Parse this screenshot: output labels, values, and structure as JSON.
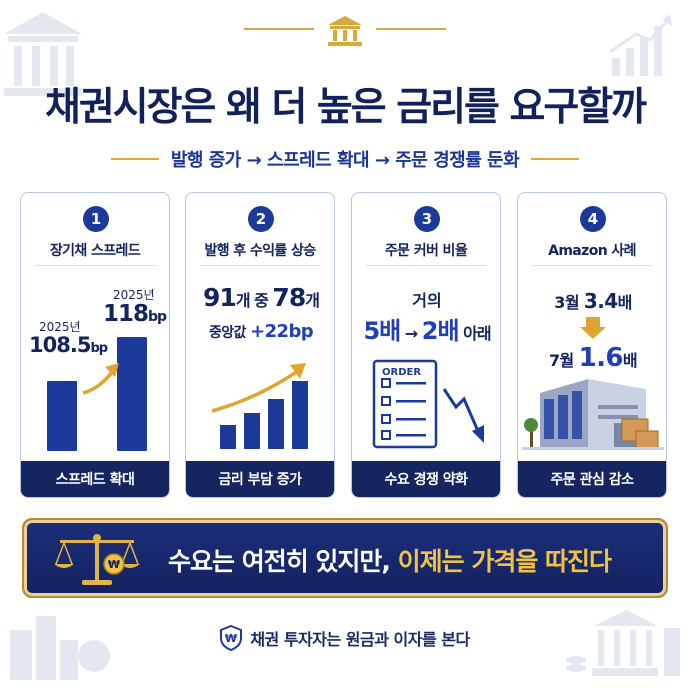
{
  "title": "채권시장은 왜 더 높은 금리를 요구할까",
  "subtitle": "발행 증가 → 스프레드 확대 → 주문 경쟁률 둔화",
  "cards": [
    {
      "number": "1",
      "title": "장기채 스프레드",
      "year_a": "2025년",
      "value_a": "108.5",
      "unit_a": "bp",
      "year_b": "2025년",
      "value_b": "118",
      "unit_b": "bp",
      "footer": "스프레드 확대",
      "bars": [
        108.5,
        118
      ]
    },
    {
      "number": "2",
      "title": "발행 후 수익률 상승",
      "count_a": "91",
      "count_a_unit": "개 중 ",
      "count_b": "78",
      "count_b_unit": "개",
      "median_label": "중앙값 ",
      "median_value": "+22bp",
      "footer": "금리 부담 증가"
    },
    {
      "number": "3",
      "title": "주문 커버 비율",
      "prefix": "거의",
      "from": "5배",
      "arrow": " → ",
      "to": "2배",
      "suffix": " 아래",
      "order_label": "ORDER",
      "footer": "수요 경쟁 약화"
    },
    {
      "number": "4",
      "title": "Amazon 사례",
      "march_label": "3월 ",
      "march_value": "3.4",
      "march_unit": "배",
      "july_label": "7월 ",
      "july_value": "1.6",
      "july_unit": "배",
      "footer": "주문 관심 감소"
    }
  ],
  "banner": {
    "text_plain": "수요는 여전히 있지만, ",
    "text_highlight": "이제는 가격을 따진다",
    "coin_symbol": "₩"
  },
  "footer": {
    "text": "채권 투자자는 원금과 이자를 본다",
    "shield_symbol": "₩"
  },
  "colors": {
    "navy": "#14255f",
    "blue": "#1e3fb5",
    "gold": "#d8a93a"
  }
}
